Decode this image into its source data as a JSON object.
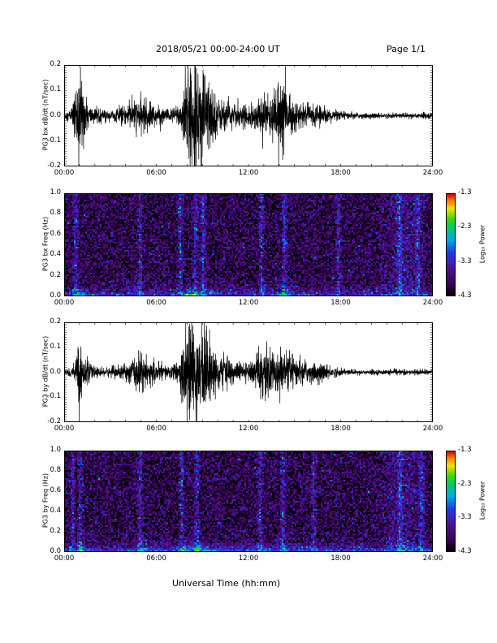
{
  "header": {
    "title": "2018/05/21   00:00-24:00 UT",
    "page": "Page 1/1"
  },
  "xlabel": "Universal Time (hh:mm)",
  "chart_data": [
    {
      "type": "line",
      "ylabel": "PG3 bx dB/dt (nT/sec)",
      "xlim": [
        0,
        24
      ],
      "ylim": [
        -0.2,
        0.2
      ],
      "x_tick_labels": [
        "00:00",
        "06:00",
        "12:00",
        "18:00",
        "24:00"
      ],
      "y_tick_labels": [
        "0.2",
        "0.1",
        "0.0",
        "-0.1",
        "-0.2"
      ],
      "envelope": {
        "x": [
          0,
          0.5,
          1.0,
          1.5,
          2,
          3,
          4,
          4.5,
          5,
          5.5,
          6,
          6.5,
          7,
          7.5,
          8.0,
          8.5,
          9.0,
          9.5,
          10,
          10.5,
          11,
          11.5,
          12,
          12.5,
          13,
          13.3,
          13.8,
          14.2,
          14.6,
          15,
          15.5,
          16,
          16.5,
          17,
          18,
          19,
          20,
          21,
          22,
          23,
          24
        ],
        "amp": [
          0.015,
          0.03,
          0.2,
          0.05,
          0.03,
          0.02,
          0.04,
          0.06,
          0.07,
          0.06,
          0.04,
          0.03,
          0.03,
          0.05,
          0.2,
          0.2,
          0.2,
          0.15,
          0.07,
          0.06,
          0.05,
          0.04,
          0.04,
          0.06,
          0.08,
          0.07,
          0.12,
          0.2,
          0.08,
          0.06,
          0.04,
          0.04,
          0.04,
          0.03,
          0.015,
          0.012,
          0.01,
          0.01,
          0.01,
          0.012,
          0.01
        ]
      }
    },
    {
      "type": "heatmap",
      "ylabel": "PG3 bx Freq (Hz)",
      "xlim": [
        0,
        24
      ],
      "ylim": [
        0,
        1.0
      ],
      "x_tick_labels": [
        "00:00",
        "06:00",
        "12:00",
        "18:00",
        "24:00"
      ],
      "y_tick_labels": [
        "1.0",
        "0.8",
        "0.6",
        "0.4",
        "0.2",
        "0.0"
      ],
      "colorbar": {
        "label": "Log₁₀ Power",
        "range": [
          -4.3,
          -1.3
        ],
        "tick_labels": [
          "-1.3",
          "-2.3",
          "-3.3",
          "-4.3"
        ]
      },
      "bright_times": [
        0.7,
        4.9,
        7.5,
        8.5,
        9.0,
        12.8,
        14.3,
        17.8,
        21.8,
        23.0
      ],
      "low_freq_band_power": -3.0,
      "background_power": -4.0
    },
    {
      "type": "line",
      "ylabel": "PG3 by dB/dt (nT/sec)",
      "xlim": [
        0,
        24
      ],
      "ylim": [
        -0.2,
        0.2
      ],
      "x_tick_labels": [
        "00:00",
        "06:00",
        "12:00",
        "18:00",
        "24:00"
      ],
      "y_tick_labels": [
        "0.2",
        "0.1",
        "0.0",
        "-0.1",
        "-0.2"
      ],
      "envelope": {
        "x": [
          0,
          0.5,
          0.8,
          1.0,
          1.3,
          2,
          3,
          4,
          4.5,
          5,
          5.5,
          6,
          6.5,
          7,
          7.5,
          8.0,
          8.5,
          9.0,
          9.5,
          10,
          10.5,
          11,
          11.5,
          12,
          12.5,
          12.8,
          13.3,
          13.8,
          14.2,
          14.8,
          15.5,
          16,
          16.5,
          17,
          18,
          19,
          20,
          21,
          22,
          23,
          24
        ],
        "amp": [
          0.01,
          0.02,
          0.07,
          0.15,
          0.06,
          0.02,
          0.02,
          0.03,
          0.06,
          0.08,
          0.05,
          0.04,
          0.03,
          0.03,
          0.05,
          0.2,
          0.2,
          0.2,
          0.12,
          0.07,
          0.06,
          0.05,
          0.04,
          0.04,
          0.06,
          0.12,
          0.08,
          0.08,
          0.1,
          0.06,
          0.05,
          0.04,
          0.04,
          0.03,
          0.015,
          0.01,
          0.01,
          0.01,
          0.01,
          0.01,
          0.01
        ]
      }
    },
    {
      "type": "heatmap",
      "ylabel": "PG3 by Freq (Hz)",
      "xlim": [
        0,
        24
      ],
      "ylim": [
        0,
        1.0
      ],
      "x_tick_labels": [
        "00:00",
        "06:00",
        "12:00",
        "18:00",
        "24:00"
      ],
      "y_tick_labels": [
        "1.0",
        "0.8",
        "0.6",
        "0.4",
        "0.2",
        "0.0"
      ],
      "colorbar": {
        "label": "Log₁₀ Power",
        "range": [
          -4.3,
          -1.3
        ],
        "tick_labels": [
          "-1.3",
          "-2.3",
          "-3.3",
          "-4.3"
        ]
      },
      "bright_times": [
        0.5,
        1.0,
        4.9,
        7.6,
        8.6,
        12.7,
        14.2,
        16.2,
        21.8,
        23.2
      ],
      "low_freq_band_power": -2.8,
      "background_power": -4.0
    }
  ]
}
